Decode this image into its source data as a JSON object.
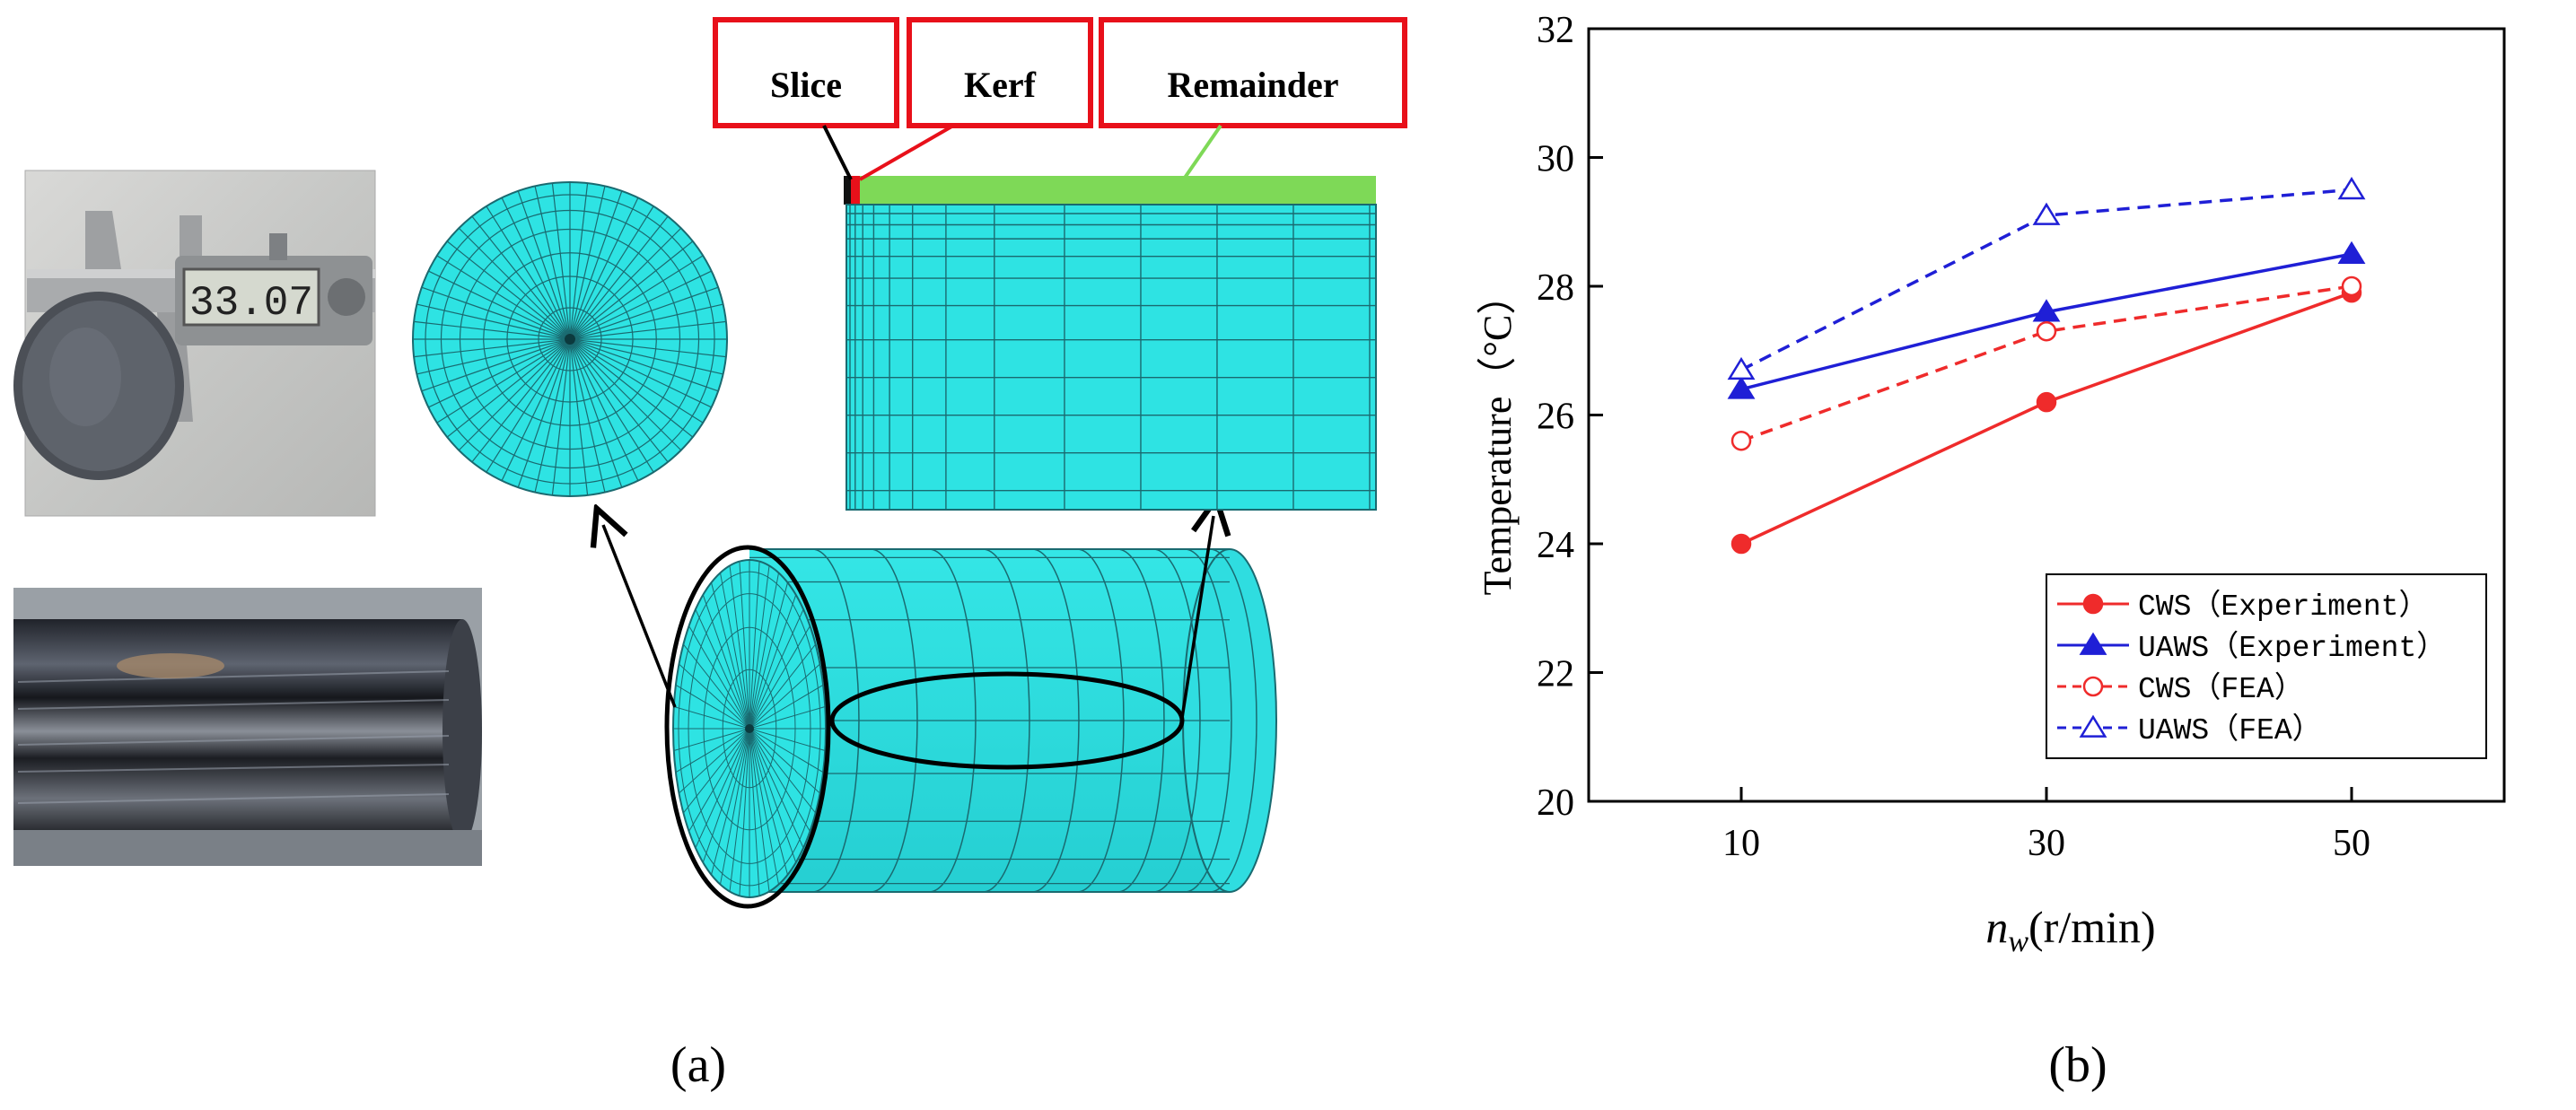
{
  "panel_a": {
    "label": "(a)",
    "callouts": {
      "slice": "Slice",
      "kerf": "Kerf",
      "remainder": "Remainder"
    },
    "caliper_reading": "33.07",
    "colors": {
      "mesh": "#2ee3e3",
      "mesh_line": "#1a6a70",
      "callout_box": "#e8101a",
      "remainder_strip": "#7ed957"
    }
  },
  "panel_b": {
    "label": "(b)",
    "xlabel_main": "n",
    "xlabel_sub": "w",
    "xlabel_unit": "(r/min)",
    "ylabel": "Temperature（°C）"
  },
  "chart_data": {
    "type": "line",
    "x": [
      10,
      30,
      50
    ],
    "xticks": [
      "10",
      "30",
      "50"
    ],
    "xlim": [
      0,
      60
    ],
    "ylim": [
      20,
      32
    ],
    "yticks": [
      "20",
      "22",
      "24",
      "26",
      "28",
      "30",
      "32"
    ],
    "legend_position": "bottom-right",
    "grid": false,
    "series": [
      {
        "name": "CWS（Experiment）",
        "values": [
          24.0,
          26.2,
          27.9
        ],
        "color": "#ef2b2b",
        "dash": "solid",
        "marker": "filled-circle"
      },
      {
        "name": "UAWS（Experiment）",
        "values": [
          26.4,
          27.6,
          28.5
        ],
        "color": "#1f1fd6",
        "dash": "solid",
        "marker": "filled-triangle"
      },
      {
        "name": "CWS（FEA）",
        "values": [
          25.6,
          27.3,
          28.0
        ],
        "color": "#ef2b2b",
        "dash": "dashed",
        "marker": "open-circle"
      },
      {
        "name": "UAWS（FEA）",
        "values": [
          26.7,
          29.1,
          29.5
        ],
        "color": "#1f1fd6",
        "dash": "dashed",
        "marker": "open-triangle"
      }
    ]
  }
}
